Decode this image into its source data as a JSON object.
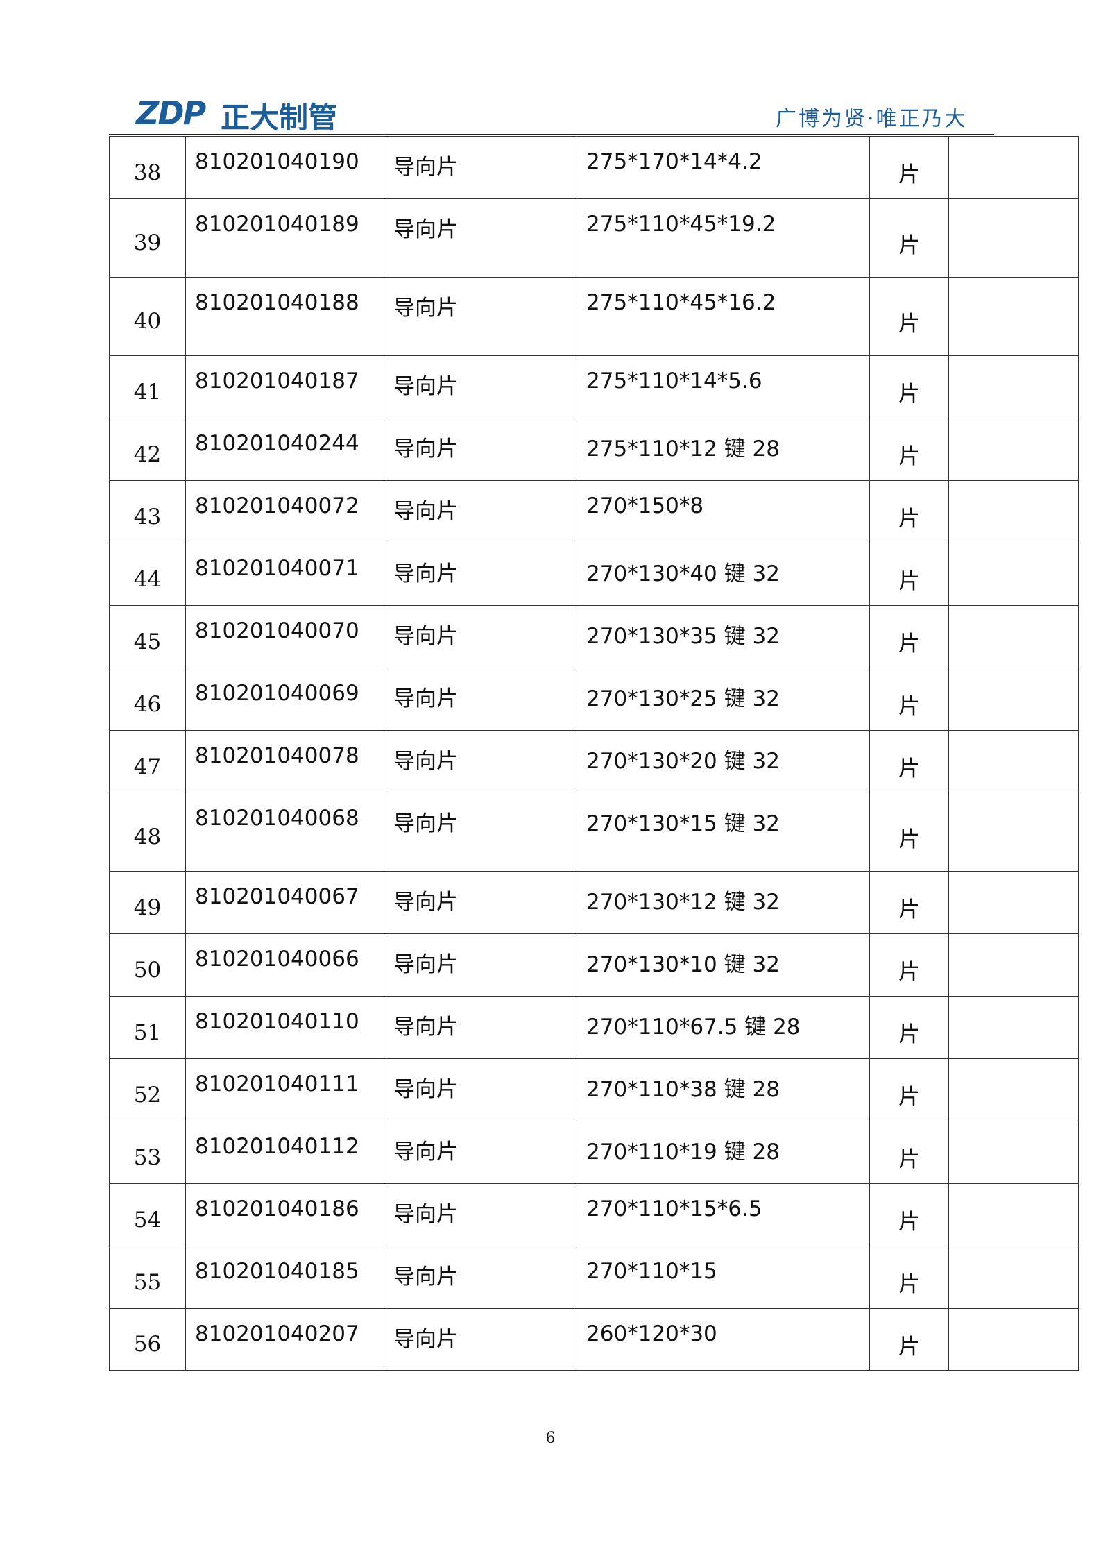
{
  "header": {
    "logo": "ZDP",
    "company": "正大制管",
    "slogan": "广博为贤·唯正乃大"
  },
  "table": {
    "rows": [
      [
        "38",
        "810201040190",
        "导向片",
        "275*170*14*4.2",
        "片"
      ],
      [
        "39",
        "810201040189",
        "导向片",
        "275*110*45*19.2",
        "片"
      ],
      [
        "40",
        "810201040188",
        "导向片",
        "275*110*45*16.2",
        "片"
      ],
      [
        "41",
        "810201040187",
        "导向片",
        "275*110*14*5.6",
        "片"
      ],
      [
        "42",
        "810201040244",
        "导向片",
        "275*110*12 键 28",
        "片"
      ],
      [
        "43",
        "810201040072",
        "导向片",
        "270*150*8",
        "片"
      ],
      [
        "44",
        "810201040071",
        "导向片",
        "270*130*40 键 32",
        "片"
      ],
      [
        "45",
        "810201040070",
        "导向片",
        "270*130*35 键 32",
        "片"
      ],
      [
        "46",
        "810201040069",
        "导向片",
        "270*130*25 键 32",
        "片"
      ],
      [
        "47",
        "810201040078",
        "导向片",
        "270*130*20 键 32",
        "片"
      ],
      [
        "48",
        "810201040068",
        "导向片",
        "270*130*15 键 32",
        "片"
      ],
      [
        "49",
        "810201040067",
        "导向片",
        "270*130*12 键 32",
        "片"
      ],
      [
        "50",
        "810201040066",
        "导向片",
        "270*130*10 键 32",
        "片"
      ],
      [
        "51",
        "810201040110",
        "导向片",
        "270*110*67.5 键 28",
        "片"
      ],
      [
        "52",
        "810201040111",
        "导向片",
        "270*110*38 键 28",
        "片"
      ],
      [
        "53",
        "810201040112",
        "导向片",
        "270*110*19 键 28",
        "片"
      ],
      [
        "54",
        "810201040186",
        "导向片",
        "270*110*15*6.5",
        "片"
      ],
      [
        "55",
        "810201040185",
        "导向片",
        "270*110*15",
        "片"
      ],
      [
        "56",
        "810201040207",
        "导向片",
        "260*120*30",
        "片"
      ]
    ]
  },
  "footer": {
    "page_number": "6"
  }
}
